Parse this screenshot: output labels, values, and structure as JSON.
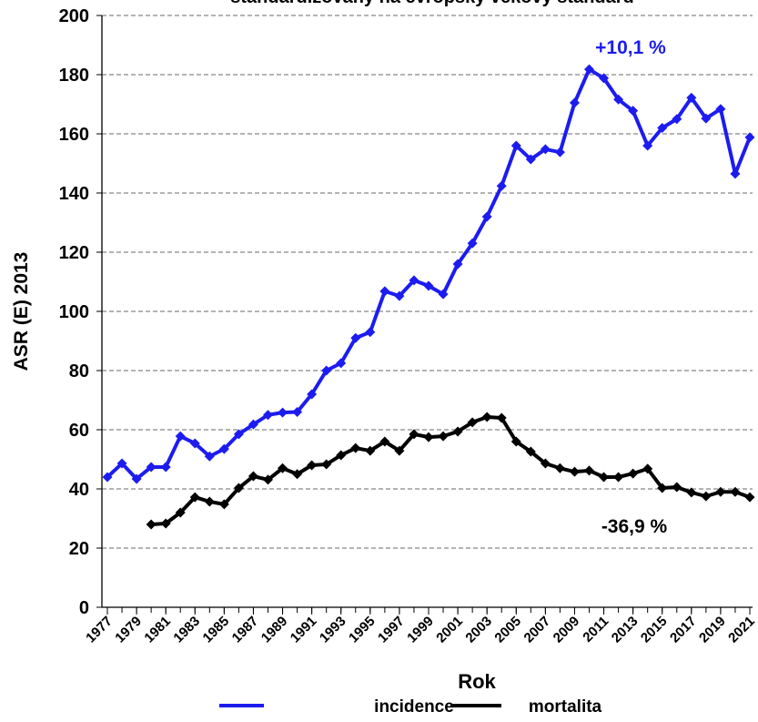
{
  "chart_data": {
    "type": "line",
    "title": "standardizovaný na evropský věkový standard",
    "xlabel": "Rok",
    "ylabel": "ASR (E) 2013",
    "x": [
      1977,
      1978,
      1979,
      1980,
      1981,
      1982,
      1983,
      1984,
      1985,
      1986,
      1987,
      1988,
      1989,
      1990,
      1991,
      1992,
      1993,
      1994,
      1995,
      1996,
      1997,
      1998,
      1999,
      2000,
      2001,
      2002,
      2003,
      2004,
      2005,
      2006,
      2007,
      2008,
      2009,
      2010,
      2011,
      2012,
      2013,
      2014,
      2015,
      2016,
      2017,
      2018,
      2019,
      2020,
      2021
    ],
    "xlim": [
      1977,
      2021
    ],
    "xticks": [
      1977,
      1979,
      1981,
      1983,
      1985,
      1987,
      1989,
      1991,
      1993,
      1995,
      1997,
      1999,
      2001,
      2003,
      2005,
      2007,
      2009,
      2011,
      2013,
      2015,
      2017,
      2019,
      2021
    ],
    "ylim": [
      0,
      200
    ],
    "yticks": [
      0,
      20,
      40,
      60,
      80,
      100,
      120,
      140,
      160,
      180,
      200
    ],
    "grid": true,
    "legend": "bottom",
    "series": [
      {
        "name": "incidence",
        "color": "#1c1cf0",
        "values": [
          44,
          48.6,
          43.4,
          47.4,
          47.4,
          57.8,
          55.4,
          51,
          53.5,
          58.5,
          61.8,
          65,
          65.8,
          66,
          72,
          80,
          82.5,
          91,
          93,
          106.8,
          105.2,
          110.5,
          108.6,
          105.8,
          116,
          123,
          132,
          142.4,
          156,
          151.4,
          154.8,
          153.8,
          170.5,
          181.8,
          178.8,
          171.6,
          167.8,
          156,
          162,
          165,
          172.2,
          165.2,
          168.4,
          146.5,
          158.8
        ]
      },
      {
        "name": "mortalita",
        "color": "#000000",
        "values": [
          null,
          null,
          null,
          28,
          28.3,
          32,
          37.2,
          35.7,
          34.8,
          40.3,
          44.3,
          43.1,
          47,
          45,
          48,
          48.3,
          51.4,
          53.8,
          52.9,
          56,
          52.9,
          58.5,
          57.5,
          57.8,
          59.4,
          62.5,
          64.3,
          64,
          56,
          52.6,
          48.6,
          47,
          45.8,
          46.2,
          44,
          44,
          45.2,
          46.8,
          40.3,
          40.6,
          38.8,
          37.5,
          39,
          39,
          37.2
        ]
      }
    ],
    "annotations": [
      "+10,1 %",
      "-36,9 %"
    ]
  }
}
